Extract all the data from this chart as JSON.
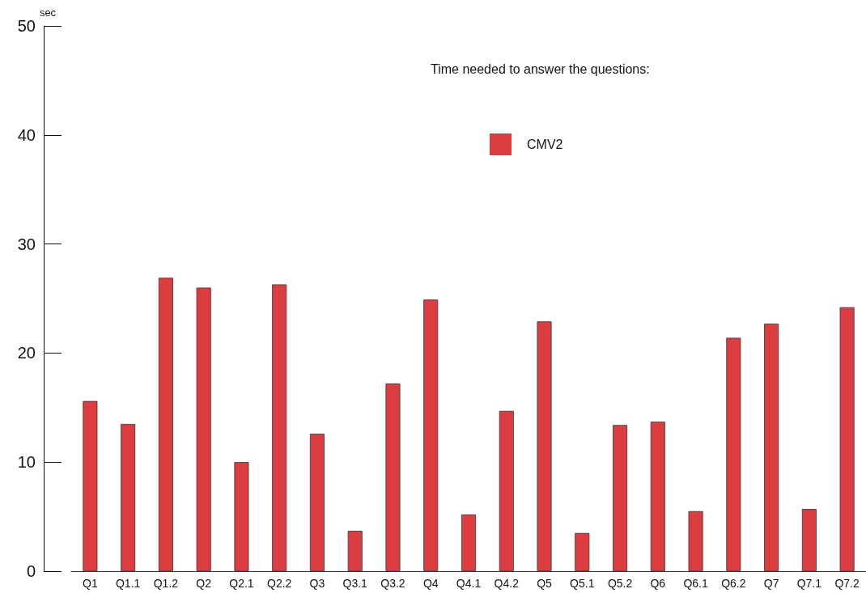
{
  "chart_data": {
    "type": "bar",
    "title": "Time needed to answer the questions:",
    "ylabel": "sec",
    "categories": [
      "Q1",
      "Q1.1",
      "Q1.2",
      "Q2",
      "Q2.1",
      "Q2.2",
      "Q3",
      "Q3.1",
      "Q3.2",
      "Q4",
      "Q4.1",
      "Q4.2",
      "Q5",
      "Q5.1",
      "Q5.2",
      "Q6",
      "Q6.1",
      "Q6.2",
      "Q7",
      "Q7.1",
      "Q7.2"
    ],
    "series": [
      {
        "name": "CMV2",
        "color": "#db3d40",
        "values": [
          15.6,
          13.5,
          26.9,
          26.0,
          10.0,
          26.3,
          12.6,
          3.7,
          17.2,
          24.9,
          5.2,
          14.7,
          22.9,
          3.5,
          13.4,
          13.7,
          5.5,
          21.4,
          22.7,
          5.7,
          24.2
        ]
      }
    ],
    "ylim": [
      0,
      50
    ],
    "yticks": [
      0,
      10,
      20,
      30,
      40,
      50
    ],
    "grid": false,
    "legend": "top right"
  }
}
